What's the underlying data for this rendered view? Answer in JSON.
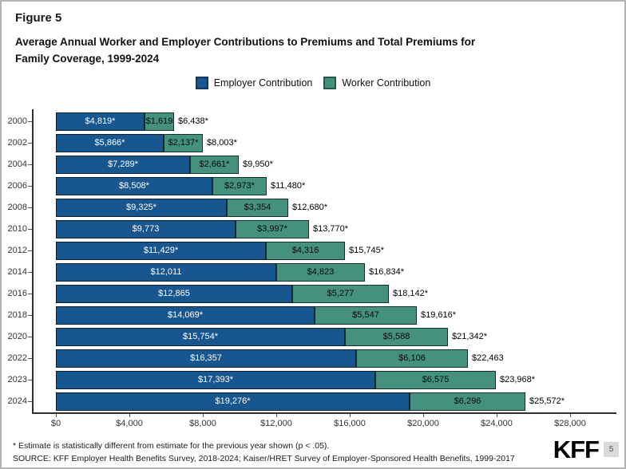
{
  "figure_label": "Figure 5",
  "title_line1": "Average Annual Worker and Employer Contributions to Premiums and Total Premiums for",
  "title_line2": "Family Coverage, 1999-2024",
  "legend": {
    "employer_label": "Employer Contribution",
    "worker_label": "Worker Contribution"
  },
  "colors": {
    "employer": "#17568f",
    "worker": "#44917d",
    "employer_border": "#0d2030",
    "worker_border": "#13312a"
  },
  "chart_data": {
    "type": "bar",
    "orientation": "horizontal",
    "stacked": true,
    "title": "Average Annual Worker and Employer Contributions to Premiums and Total Premiums for Family Coverage, 1999-2024",
    "categories": [
      "2000",
      "2002",
      "2004",
      "2006",
      "2008",
      "2010",
      "2012",
      "2014",
      "2016",
      "2018",
      "2020",
      "2022",
      "2023",
      "2024"
    ],
    "series": [
      {
        "name": "Employer Contribution",
        "values": [
          4819,
          5866,
          7289,
          8508,
          9325,
          9773,
          11429,
          12011,
          12865,
          14069,
          15754,
          16357,
          17393,
          19276
        ],
        "labels": [
          "$4,819*",
          "$5,866*",
          "$7,289*",
          "$8,508*",
          "$9,325*",
          "$9,773",
          "$11,429*",
          "$12,011",
          "$12,865",
          "$14,069*",
          "$15,754*",
          "$16,357",
          "$17,393*",
          "$19,276*"
        ]
      },
      {
        "name": "Worker Contribution",
        "values": [
          1619,
          2137,
          2661,
          2973,
          3354,
          3997,
          4316,
          4823,
          5277,
          5547,
          5588,
          6106,
          6575,
          6296
        ],
        "labels": [
          "$1,619",
          "$2,137*",
          "$2,661*",
          "$2,973*",
          "$3,354",
          "$3,997*",
          "$4,316",
          "$4,823",
          "$5,277",
          "$5,547",
          "$5,588",
          "$6,106",
          "$6,575",
          "$6,296"
        ]
      }
    ],
    "totals": {
      "values": [
        6438,
        8003,
        9950,
        11480,
        12680,
        13770,
        15745,
        16834,
        18142,
        19616,
        21342,
        22463,
        23968,
        25572
      ],
      "labels": [
        "$6,438*",
        "$8,003*",
        "$9,950*",
        "$11,480*",
        "$12,680*",
        "$13,770*",
        "$15,745*",
        "$16,834*",
        "$18,142*",
        "$19,616*",
        "$21,342*",
        "$22,463",
        "$23,968*",
        "$25,572*"
      ]
    },
    "x_axis": {
      "xlim": [
        0,
        28000
      ],
      "ticks": [
        0,
        4000,
        8000,
        12000,
        16000,
        20000,
        24000,
        28000
      ],
      "tick_labels": [
        "$0",
        "$4,000",
        "$8,000",
        "$12,000",
        "$16,000",
        "$20,000",
        "$24,000",
        "$28,000"
      ]
    },
    "legend_position": "top-center",
    "grid": false
  },
  "footnote": "* Estimate is statistically different from estimate for the previous year shown (p < .05).",
  "source": "SOURCE: KFF Employer Health Benefits Survey, 2018-2024; Kaiser/HRET Survey of Employer-Sponsored Health Benefits, 1999-2017",
  "logo": {
    "text": "KFF",
    "page_number": "5"
  }
}
